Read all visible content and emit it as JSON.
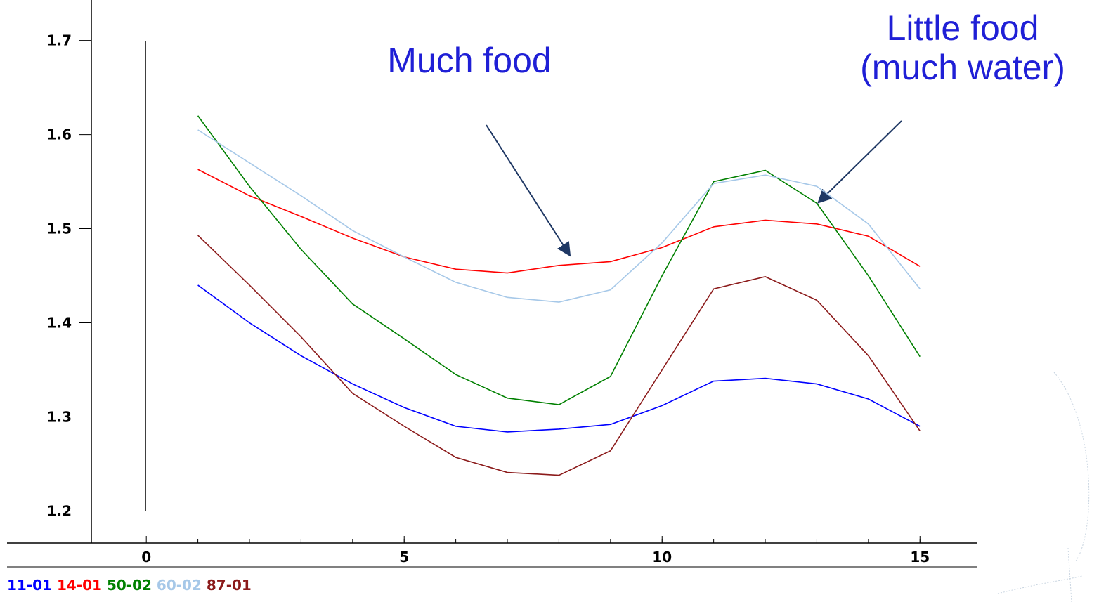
{
  "chart_data": {
    "type": "line",
    "x": [
      1,
      2,
      3,
      4,
      5,
      6,
      7,
      8,
      9,
      10,
      11,
      12,
      13,
      14,
      15
    ],
    "series": [
      {
        "name": "11-01",
        "color": "#0000ff",
        "values": [
          1.44,
          1.4,
          1.365,
          1.335,
          1.31,
          1.29,
          1.284,
          1.287,
          1.292,
          1.312,
          1.338,
          1.341,
          1.335,
          1.319,
          1.29
        ]
      },
      {
        "name": "14-01",
        "color": "#ff0000",
        "values": [
          1.563,
          1.535,
          1.513,
          1.49,
          1.47,
          1.457,
          1.453,
          1.461,
          1.465,
          1.48,
          1.502,
          1.509,
          1.505,
          1.492,
          1.46
        ]
      },
      {
        "name": "50-02",
        "color": "#008000",
        "values": [
          1.62,
          1.545,
          1.478,
          1.42,
          1.383,
          1.345,
          1.32,
          1.313,
          1.343,
          1.45,
          1.55,
          1.562,
          1.527,
          1.45,
          1.364
        ]
      },
      {
        "name": "60-02",
        "color": "#a6c8e8",
        "values": [
          1.605,
          1.57,
          1.535,
          1.498,
          1.47,
          1.443,
          1.427,
          1.422,
          1.435,
          1.485,
          1.548,
          1.557,
          1.545,
          1.505,
          1.436
        ]
      },
      {
        "name": "87-01",
        "color": "#8b1a1a",
        "values": [
          1.493,
          1.44,
          1.385,
          1.325,
          1.29,
          1.257,
          1.241,
          1.238,
          1.264,
          1.35,
          1.436,
          1.449,
          1.424,
          1.365,
          1.285
        ]
      }
    ],
    "xlim": [
      -2.7,
      16.1
    ],
    "xticks": [
      0,
      5,
      10,
      15
    ],
    "ylim": [
      1.166,
      1.743
    ],
    "yticks": [
      1.2,
      1.3,
      1.4,
      1.5,
      1.6,
      1.7
    ],
    "yticks_labels": null,
    "annotations": [
      {
        "lines": [
          "Much food"
        ],
        "color": "#1f1fd6"
      },
      {
        "lines": [
          "Little food",
          "(much water)"
        ],
        "color": "#1f1fd6"
      }
    ]
  }
}
